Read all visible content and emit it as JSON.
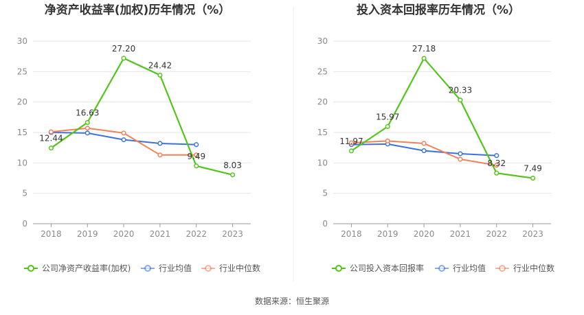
{
  "chart_data": [
    {
      "type": "line",
      "title": "净资产收益率(加权)历年情况（%）",
      "categories": [
        "2018",
        "2019",
        "2020",
        "2021",
        "2022",
        "2023"
      ],
      "ylim": [
        0,
        30
      ],
      "yticks": [
        0,
        5,
        10,
        15,
        20,
        25,
        30
      ],
      "series": [
        {
          "name": "公司净资产收益率(加权)",
          "color": "#52c41a",
          "values": [
            12.44,
            16.63,
            27.2,
            24.42,
            9.49,
            8.03
          ],
          "labels": [
            "12.44",
            "16.63",
            "27.20",
            "24.42",
            "9.49",
            "8.03"
          ]
        },
        {
          "name": "行业均值",
          "color": "#3b72d9",
          "values": [
            15.0,
            14.9,
            13.8,
            13.2,
            13.0,
            null
          ]
        },
        {
          "name": "行业中位数",
          "color": "#f0825a",
          "values": [
            15.1,
            15.7,
            14.9,
            11.3,
            11.3,
            null
          ]
        }
      ]
    },
    {
      "type": "line",
      "title": "投入资本回报率历年情况（%）",
      "categories": [
        "2018",
        "2019",
        "2020",
        "2021",
        "2022",
        "2023"
      ],
      "ylim": [
        0,
        30
      ],
      "yticks": [
        0,
        5,
        10,
        15,
        20,
        25,
        30
      ],
      "series": [
        {
          "name": "公司投入资本回报率",
          "color": "#52c41a",
          "values": [
            11.97,
            15.97,
            27.18,
            20.33,
            8.32,
            7.49
          ],
          "labels": [
            "11.97",
            "15.97",
            "27.18",
            "20.33",
            "8.32",
            "7.49"
          ]
        },
        {
          "name": "行业均值",
          "color": "#3b72d9",
          "values": [
            13.0,
            13.1,
            12.0,
            11.5,
            11.2,
            null
          ]
        },
        {
          "name": "行业中位数",
          "color": "#f0825a",
          "values": [
            13.3,
            13.6,
            13.2,
            10.6,
            9.6,
            null
          ]
        }
      ]
    }
  ],
  "source": "数据来源：恒生聚源"
}
